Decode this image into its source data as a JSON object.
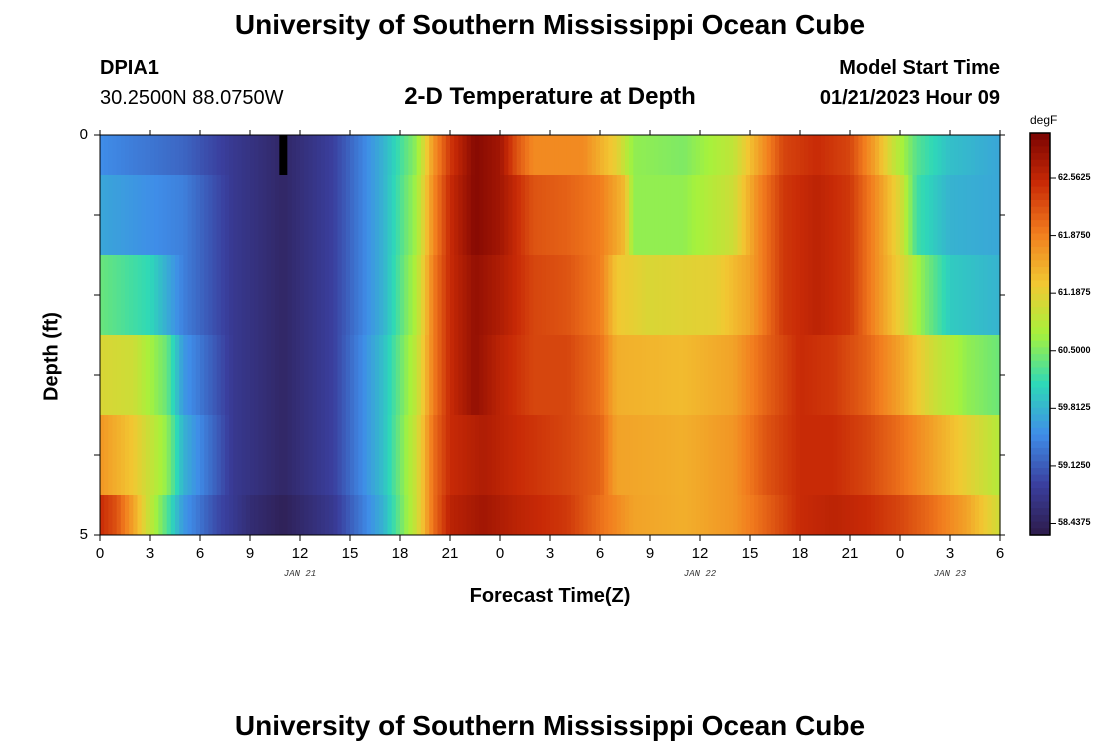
{
  "page": {
    "title": "University of Southern Mississippi Ocean Cube",
    "title_repeat": "University of Southern Mississippi Ocean Cube",
    "station": "DPIA1",
    "coords": "30.2500N  88.0750W",
    "subtitle": "2-D Temperature at Depth",
    "model_start_label": "Model Start Time",
    "model_start_value": "01/21/2023 Hour 09"
  },
  "chart_data": {
    "type": "heatmap",
    "title": "2-D Temperature at Depth",
    "xlabel": "Forecast Time(Z)",
    "ylabel": "Depth (ft)",
    "x_range_hours": [
      0,
      54
    ],
    "y_range_ft": [
      0,
      5
    ],
    "x_tick_labels": [
      "0",
      "3",
      "6",
      "9",
      "12",
      "15",
      "18",
      "21",
      "0",
      "3",
      "6",
      "9",
      "12",
      "15",
      "18",
      "21",
      "0",
      "3",
      "6"
    ],
    "y_tick_labels": [
      "0",
      "5"
    ],
    "date_labels": [
      {
        "text": "JAN 21",
        "hour": 12
      },
      {
        "text": "JAN 22",
        "hour": 36
      },
      {
        "text": "JAN 23",
        "hour": 51
      }
    ],
    "colorbar": {
      "unit": "degF",
      "min": 58.3,
      "max": 63.1,
      "tick_labels": [
        "62.5625",
        "61.8750",
        "61.1875",
        "60.5000",
        "59.8125",
        "59.1250",
        "58.4375"
      ],
      "tick_values": [
        62.5625,
        61.875,
        61.1875,
        60.5,
        59.8125,
        59.125,
        58.4375
      ],
      "colors": [
        "#2d1b4a",
        "#3a3f9e",
        "#3f8de8",
        "#2ed8b8",
        "#a6f23c",
        "#f2c832",
        "#f27d1e",
        "#c82a06",
        "#7a0302"
      ]
    },
    "depth_rows_ft": [
      0.25,
      1.0,
      2.0,
      3.0,
      4.0,
      4.75
    ],
    "missing_cells": [
      {
        "hour": 11,
        "row": 0
      }
    ],
    "temperature_keyframes_by_row": [
      [
        [
          0,
          59.5
        ],
        [
          5,
          59.2
        ],
        [
          8,
          58.8
        ],
        [
          11,
          58.5
        ],
        [
          14,
          58.9
        ],
        [
          17,
          59.8
        ],
        [
          19,
          60.6
        ],
        [
          20,
          61.7
        ],
        [
          21,
          62.4
        ],
        [
          22.5,
          63.0
        ],
        [
          24,
          62.8
        ],
        [
          25,
          62.2
        ],
        [
          26,
          61.8
        ],
        [
          29,
          61.8
        ],
        [
          31,
          61.2
        ],
        [
          32,
          60.6
        ],
        [
          35,
          60.5
        ],
        [
          38,
          60.9
        ],
        [
          39.5,
          61.6
        ],
        [
          41,
          62.3
        ],
        [
          43,
          62.5
        ],
        [
          45,
          62.3
        ],
        [
          46.5,
          61.6
        ],
        [
          47.5,
          61.0
        ],
        [
          49,
          60.3
        ],
        [
          51,
          59.9
        ],
        [
          54,
          59.7
        ]
      ],
      [
        [
          0,
          59.7
        ],
        [
          5,
          59.4
        ],
        [
          8,
          58.8
        ],
        [
          11,
          58.5
        ],
        [
          14,
          58.9
        ],
        [
          17,
          59.8
        ],
        [
          19,
          60.7
        ],
        [
          20,
          61.8
        ],
        [
          21,
          62.5
        ],
        [
          22.5,
          63.0
        ],
        [
          24,
          62.8
        ],
        [
          26,
          62.2
        ],
        [
          28,
          62.1
        ],
        [
          30,
          61.9
        ],
        [
          31.5,
          61.4
        ],
        [
          32,
          60.6
        ],
        [
          35,
          60.6
        ],
        [
          38,
          61.0
        ],
        [
          39.5,
          61.8
        ],
        [
          41,
          62.4
        ],
        [
          43,
          62.6
        ],
        [
          45,
          62.4
        ],
        [
          46.5,
          61.8
        ],
        [
          48,
          61.1
        ],
        [
          49,
          60.2
        ],
        [
          51,
          59.8
        ],
        [
          54,
          59.7
        ]
      ],
      [
        [
          0,
          60.4
        ],
        [
          3,
          60.1
        ],
        [
          5,
          59.4
        ],
        [
          8,
          58.8
        ],
        [
          11,
          58.5
        ],
        [
          14,
          58.9
        ],
        [
          17,
          59.8
        ],
        [
          19,
          60.8
        ],
        [
          20,
          61.9
        ],
        [
          21,
          62.5
        ],
        [
          22.5,
          62.9
        ],
        [
          24,
          62.7
        ],
        [
          26,
          62.3
        ],
        [
          28,
          62.2
        ],
        [
          30,
          61.9
        ],
        [
          31,
          61.3
        ],
        [
          33,
          61.1
        ],
        [
          37,
          61.2
        ],
        [
          39,
          61.6
        ],
        [
          41,
          62.4
        ],
        [
          43,
          62.6
        ],
        [
          45,
          62.4
        ],
        [
          46.5,
          61.8
        ],
        [
          48,
          61.2
        ],
        [
          49.5,
          60.5
        ],
        [
          51,
          60.0
        ],
        [
          54,
          59.8
        ]
      ],
      [
        [
          0,
          61.1
        ],
        [
          2,
          61.0
        ],
        [
          4,
          60.4
        ],
        [
          5,
          59.6
        ],
        [
          8,
          58.8
        ],
        [
          11,
          58.5
        ],
        [
          14,
          58.9
        ],
        [
          17,
          59.9
        ],
        [
          19,
          60.9
        ],
        [
          20,
          61.9
        ],
        [
          21,
          62.5
        ],
        [
          22.5,
          62.9
        ],
        [
          24,
          62.6
        ],
        [
          26,
          62.3
        ],
        [
          28,
          62.3
        ],
        [
          30,
          62.0
        ],
        [
          31,
          61.5
        ],
        [
          35,
          61.4
        ],
        [
          38,
          61.6
        ],
        [
          40,
          62.1
        ],
        [
          42,
          62.5
        ],
        [
          44,
          62.4
        ],
        [
          46,
          62.1
        ],
        [
          48,
          61.6
        ],
        [
          50,
          61.0
        ],
        [
          52,
          60.6
        ],
        [
          54,
          60.4
        ]
      ],
      [
        [
          0,
          61.7
        ],
        [
          2,
          61.3
        ],
        [
          4,
          60.6
        ],
        [
          5,
          59.8
        ],
        [
          8,
          58.8
        ],
        [
          11,
          58.5
        ],
        [
          14,
          58.9
        ],
        [
          17,
          59.9
        ],
        [
          19,
          61.0
        ],
        [
          20,
          62.0
        ],
        [
          21,
          62.5
        ],
        [
          23,
          62.7
        ],
        [
          25,
          62.5
        ],
        [
          28,
          62.3
        ],
        [
          30,
          62.1
        ],
        [
          31,
          61.6
        ],
        [
          35,
          61.5
        ],
        [
          38,
          61.7
        ],
        [
          40,
          62.2
        ],
        [
          42,
          62.5
        ],
        [
          44,
          62.5
        ],
        [
          46,
          62.3
        ],
        [
          48,
          62.0
        ],
        [
          50,
          61.6
        ],
        [
          52,
          61.2
        ],
        [
          54,
          60.8
        ]
      ],
      [
        [
          0,
          62.5
        ],
        [
          1,
          62.2
        ],
        [
          2,
          61.6
        ],
        [
          3,
          60.9
        ],
        [
          4,
          60.3
        ],
        [
          5,
          59.6
        ],
        [
          7,
          59.0
        ],
        [
          9,
          58.6
        ],
        [
          11,
          58.4
        ],
        [
          14,
          58.8
        ],
        [
          17,
          59.8
        ],
        [
          19,
          61.0
        ],
        [
          20,
          62.0
        ],
        [
          21,
          62.6
        ],
        [
          23,
          62.8
        ],
        [
          25,
          62.6
        ],
        [
          28,
          62.4
        ],
        [
          30,
          62.0
        ],
        [
          32,
          61.6
        ],
        [
          35,
          61.5
        ],
        [
          38,
          61.7
        ],
        [
          40,
          62.1
        ],
        [
          42,
          62.5
        ],
        [
          44,
          62.6
        ],
        [
          46,
          62.5
        ],
        [
          48,
          62.3
        ],
        [
          50,
          62.0
        ],
        [
          52,
          61.6
        ],
        [
          54,
          61.0
        ]
      ]
    ]
  }
}
